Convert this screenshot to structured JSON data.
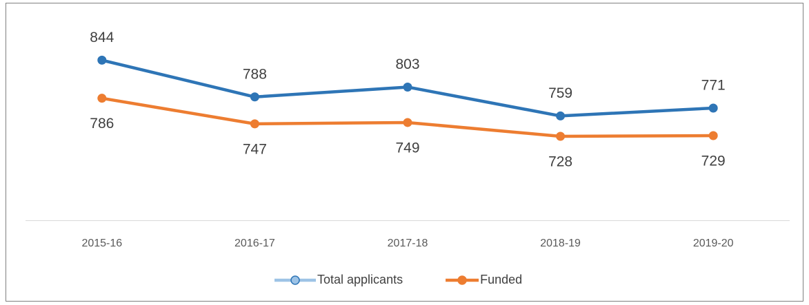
{
  "chart_data": {
    "type": "line",
    "categories": [
      "2015-16",
      "2016-17",
      "2017-18",
      "2018-19",
      "2019-20"
    ],
    "series": [
      {
        "name": "Total applicants",
        "color": "#2e75b6",
        "values": [
          844,
          788,
          803,
          759,
          771
        ]
      },
      {
        "name": "Funded",
        "color": "#ed7d31",
        "values": [
          786,
          747,
          749,
          728,
          729
        ]
      }
    ],
    "ylim": [
      600,
      900
    ]
  }
}
